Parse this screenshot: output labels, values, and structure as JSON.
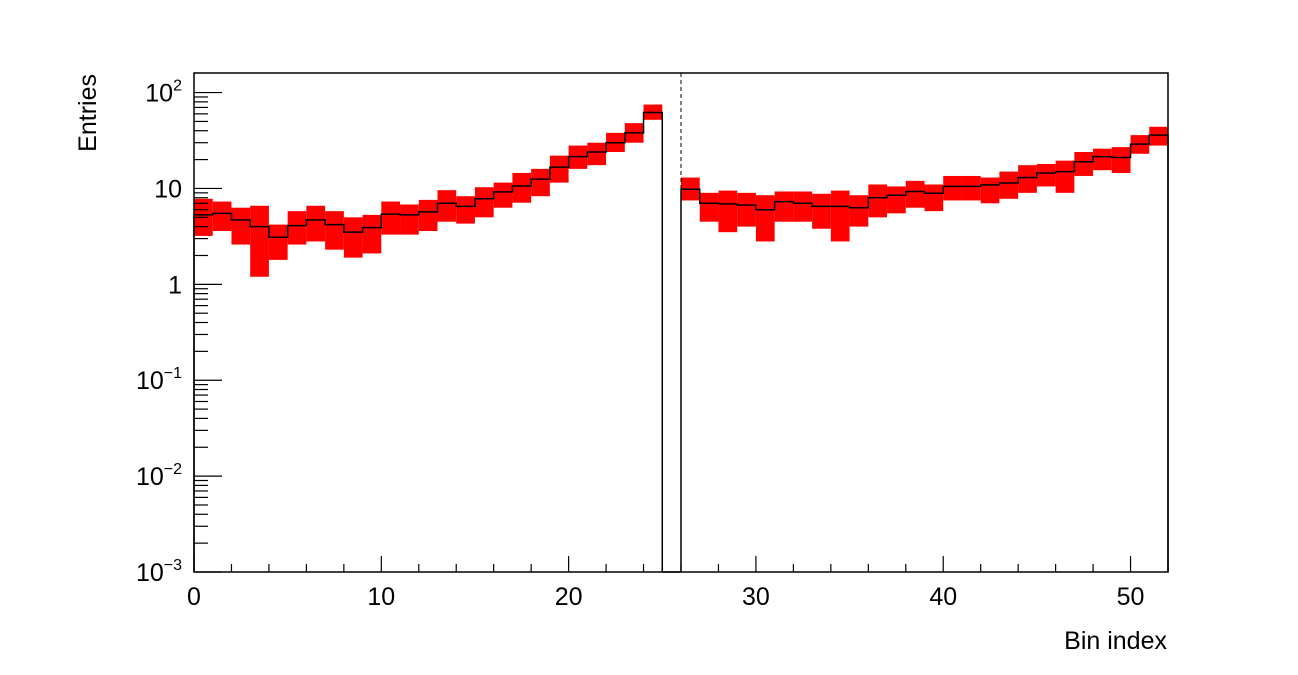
{
  "chart_data": {
    "type": "histogram",
    "xlabel": "Bin index",
    "ylabel": "Entries",
    "xlim": [
      0,
      52
    ],
    "ylim": [
      0.001,
      160
    ],
    "y_scale": "log",
    "x_ticks": [
      {
        "value": 0,
        "label": "0"
      },
      {
        "value": 10,
        "label": "10"
      },
      {
        "value": 20,
        "label": "20"
      },
      {
        "value": 30,
        "label": "30"
      },
      {
        "value": 40,
        "label": "40"
      },
      {
        "value": 50,
        "label": "50"
      }
    ],
    "y_ticks": [
      {
        "value": 0.001,
        "base": "10",
        "exp": "−3"
      },
      {
        "value": 0.01,
        "base": "10",
        "exp": "−2"
      },
      {
        "value": 0.1,
        "base": "10",
        "exp": "−1"
      },
      {
        "value": 1,
        "base": "1",
        "exp": ""
      },
      {
        "value": 10,
        "base": "10",
        "exp": ""
      },
      {
        "value": 100,
        "base": "10",
        "exp": "2"
      }
    ],
    "divider_x": 26,
    "bin_width": 1,
    "bins": [
      {
        "x": 0,
        "value": 5.3,
        "low": 3.2,
        "high": 7.8
      },
      {
        "x": 1,
        "value": 5.5,
        "low": 3.6,
        "high": 7.3
      },
      {
        "x": 2,
        "value": 4.7,
        "low": 2.6,
        "high": 6.3
      },
      {
        "x": 3,
        "value": 4.0,
        "low": 1.2,
        "high": 6.6
      },
      {
        "x": 4,
        "value": 3.1,
        "low": 1.8,
        "high": 4.2
      },
      {
        "x": 5,
        "value": 4.1,
        "low": 2.6,
        "high": 5.8
      },
      {
        "x": 6,
        "value": 4.7,
        "low": 2.8,
        "high": 6.6
      },
      {
        "x": 7,
        "value": 4.2,
        "low": 2.3,
        "high": 5.8
      },
      {
        "x": 8,
        "value": 3.5,
        "low": 1.9,
        "high": 5.0
      },
      {
        "x": 9,
        "value": 3.9,
        "low": 2.1,
        "high": 5.3
      },
      {
        "x": 10,
        "value": 5.4,
        "low": 3.3,
        "high": 7.3
      },
      {
        "x": 11,
        "value": 5.3,
        "low": 3.3,
        "high": 6.8
      },
      {
        "x": 12,
        "value": 5.7,
        "low": 3.6,
        "high": 7.6
      },
      {
        "x": 13,
        "value": 7.0,
        "low": 4.5,
        "high": 9.6
      },
      {
        "x": 14,
        "value": 6.5,
        "low": 4.3,
        "high": 8.3
      },
      {
        "x": 15,
        "value": 7.8,
        "low": 5.0,
        "high": 10.3
      },
      {
        "x": 16,
        "value": 9.2,
        "low": 6.3,
        "high": 11.5
      },
      {
        "x": 17,
        "value": 10.6,
        "low": 7.1,
        "high": 14.5
      },
      {
        "x": 18,
        "value": 12.5,
        "low": 8.3,
        "high": 16.0
      },
      {
        "x": 19,
        "value": 16.7,
        "low": 11.5,
        "high": 22.0
      },
      {
        "x": 20,
        "value": 21.5,
        "low": 16.0,
        "high": 28.0
      },
      {
        "x": 21,
        "value": 24.0,
        "low": 17.5,
        "high": 30.0
      },
      {
        "x": 22,
        "value": 30.0,
        "low": 24.0,
        "high": 38.0
      },
      {
        "x": 23,
        "value": 38.0,
        "low": 30.0,
        "high": 48.0
      },
      {
        "x": 24,
        "value": 62.0,
        "low": 52.0,
        "high": 75.0
      },
      {
        "x": 25,
        "value": 0.0,
        "low": null,
        "high": null
      },
      {
        "x": 26,
        "value": 9.8,
        "low": 7.5,
        "high": 13.0
      },
      {
        "x": 27,
        "value": 7.0,
        "low": 4.5,
        "high": 9.0
      },
      {
        "x": 28,
        "value": 6.9,
        "low": 3.5,
        "high": 9.5
      },
      {
        "x": 29,
        "value": 6.7,
        "low": 4.0,
        "high": 9.0
      },
      {
        "x": 30,
        "value": 6.0,
        "low": 2.8,
        "high": 8.5
      },
      {
        "x": 31,
        "value": 7.3,
        "low": 4.5,
        "high": 9.3
      },
      {
        "x": 32,
        "value": 7.0,
        "low": 4.5,
        "high": 9.3
      },
      {
        "x": 33,
        "value": 6.5,
        "low": 3.8,
        "high": 8.8
      },
      {
        "x": 34,
        "value": 6.5,
        "low": 2.8,
        "high": 9.5
      },
      {
        "x": 35,
        "value": 6.3,
        "low": 4.0,
        "high": 8.5
      },
      {
        "x": 36,
        "value": 8.0,
        "low": 5.0,
        "high": 11.0
      },
      {
        "x": 37,
        "value": 8.5,
        "low": 5.5,
        "high": 10.5
      },
      {
        "x": 38,
        "value": 9.3,
        "low": 6.3,
        "high": 12.0
      },
      {
        "x": 39,
        "value": 8.9,
        "low": 5.8,
        "high": 11.0
      },
      {
        "x": 40,
        "value": 10.5,
        "low": 7.5,
        "high": 13.5
      },
      {
        "x": 41,
        "value": 10.5,
        "low": 7.5,
        "high": 13.5
      },
      {
        "x": 42,
        "value": 10.9,
        "low": 7.0,
        "high": 13.0
      },
      {
        "x": 43,
        "value": 11.4,
        "low": 7.8,
        "high": 15.0
      },
      {
        "x": 44,
        "value": 13.0,
        "low": 9.0,
        "high": 17.5
      },
      {
        "x": 45,
        "value": 14.5,
        "low": 10.5,
        "high": 18.0
      },
      {
        "x": 46,
        "value": 15.0,
        "low": 9.0,
        "high": 19.5
      },
      {
        "x": 47,
        "value": 19.0,
        "low": 13.5,
        "high": 24.0
      },
      {
        "x": 48,
        "value": 21.5,
        "low": 15.5,
        "high": 26.0
      },
      {
        "x": 49,
        "value": 21.0,
        "low": 14.5,
        "high": 27.0
      },
      {
        "x": 50,
        "value": 29.0,
        "low": 23.0,
        "high": 36.0
      },
      {
        "x": 51,
        "value": 36.0,
        "low": 28.0,
        "high": 44.0
      }
    ]
  },
  "colors": {
    "band": "#ff0000",
    "line": "#000000",
    "frame": "#000000"
  }
}
